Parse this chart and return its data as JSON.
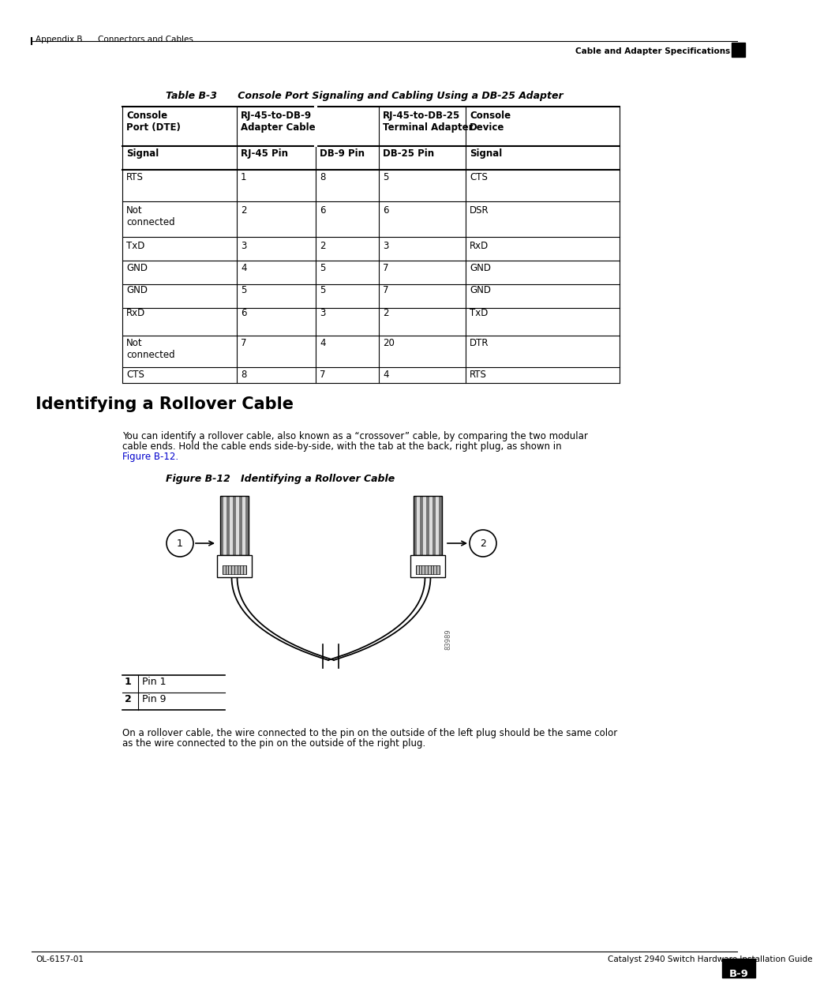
{
  "page_header_left": "Appendix B      Connectors and Cables",
  "page_header_right": "Cable and Adapter Specifications",
  "table_title": "Table B-3      Console Port Signaling and Cabling Using a DB-25 Adapter",
  "table_headers_row2": [
    "Signal",
    "RJ-45 Pin",
    "DB-9 Pin",
    "DB-25 Pin",
    "Signal"
  ],
  "table_data": [
    [
      "RTS",
      "1",
      "8",
      "5",
      "CTS"
    ],
    [
      "Not\nconnected",
      "2",
      "6",
      "6",
      "DSR"
    ],
    [
      "TxD",
      "3",
      "2",
      "3",
      "RxD"
    ],
    [
      "GND",
      "4",
      "5",
      "7",
      "GND"
    ],
    [
      "GND",
      "5",
      "5",
      "7",
      "GND"
    ],
    [
      "RxD",
      "6",
      "3",
      "2",
      "TxD"
    ],
    [
      "Not\nconnected",
      "7",
      "4",
      "20",
      "DTR"
    ],
    [
      "CTS",
      "8",
      "7",
      "4",
      "RTS"
    ]
  ],
  "section_title": "Identifying a Rollover Cable",
  "body_text1_line1": "You can identify a rollover cable, also known as a “crossover” cable, by comparing the two modular",
  "body_text1_line2": "cable ends. Hold the cable ends side-by-side, with the tab at the back, right plug, as shown in",
  "body_text1_line3": "Figure B-12.",
  "figure_title": "Figure B-12   Identifying a Rollover Cable",
  "legend_data": [
    [
      "1",
      "Pin 1"
    ],
    [
      "2",
      "Pin 9"
    ]
  ],
  "body_text2_line1": "On a rollover cable, the wire connected to the pin on the outside of the left plug should be the same color",
  "body_text2_line2": "as the wire connected to the pin on the outside of the right plug.",
  "page_footer_left": "OL-6157-01",
  "page_footer_right": "Catalyst 2940 Switch Hardware Installation Guide",
  "page_number": "B-9",
  "figure_ref_color": "#0000CC",
  "background_color": "#ffffff",
  "text_color": "#000000",
  "image_id": "83989"
}
